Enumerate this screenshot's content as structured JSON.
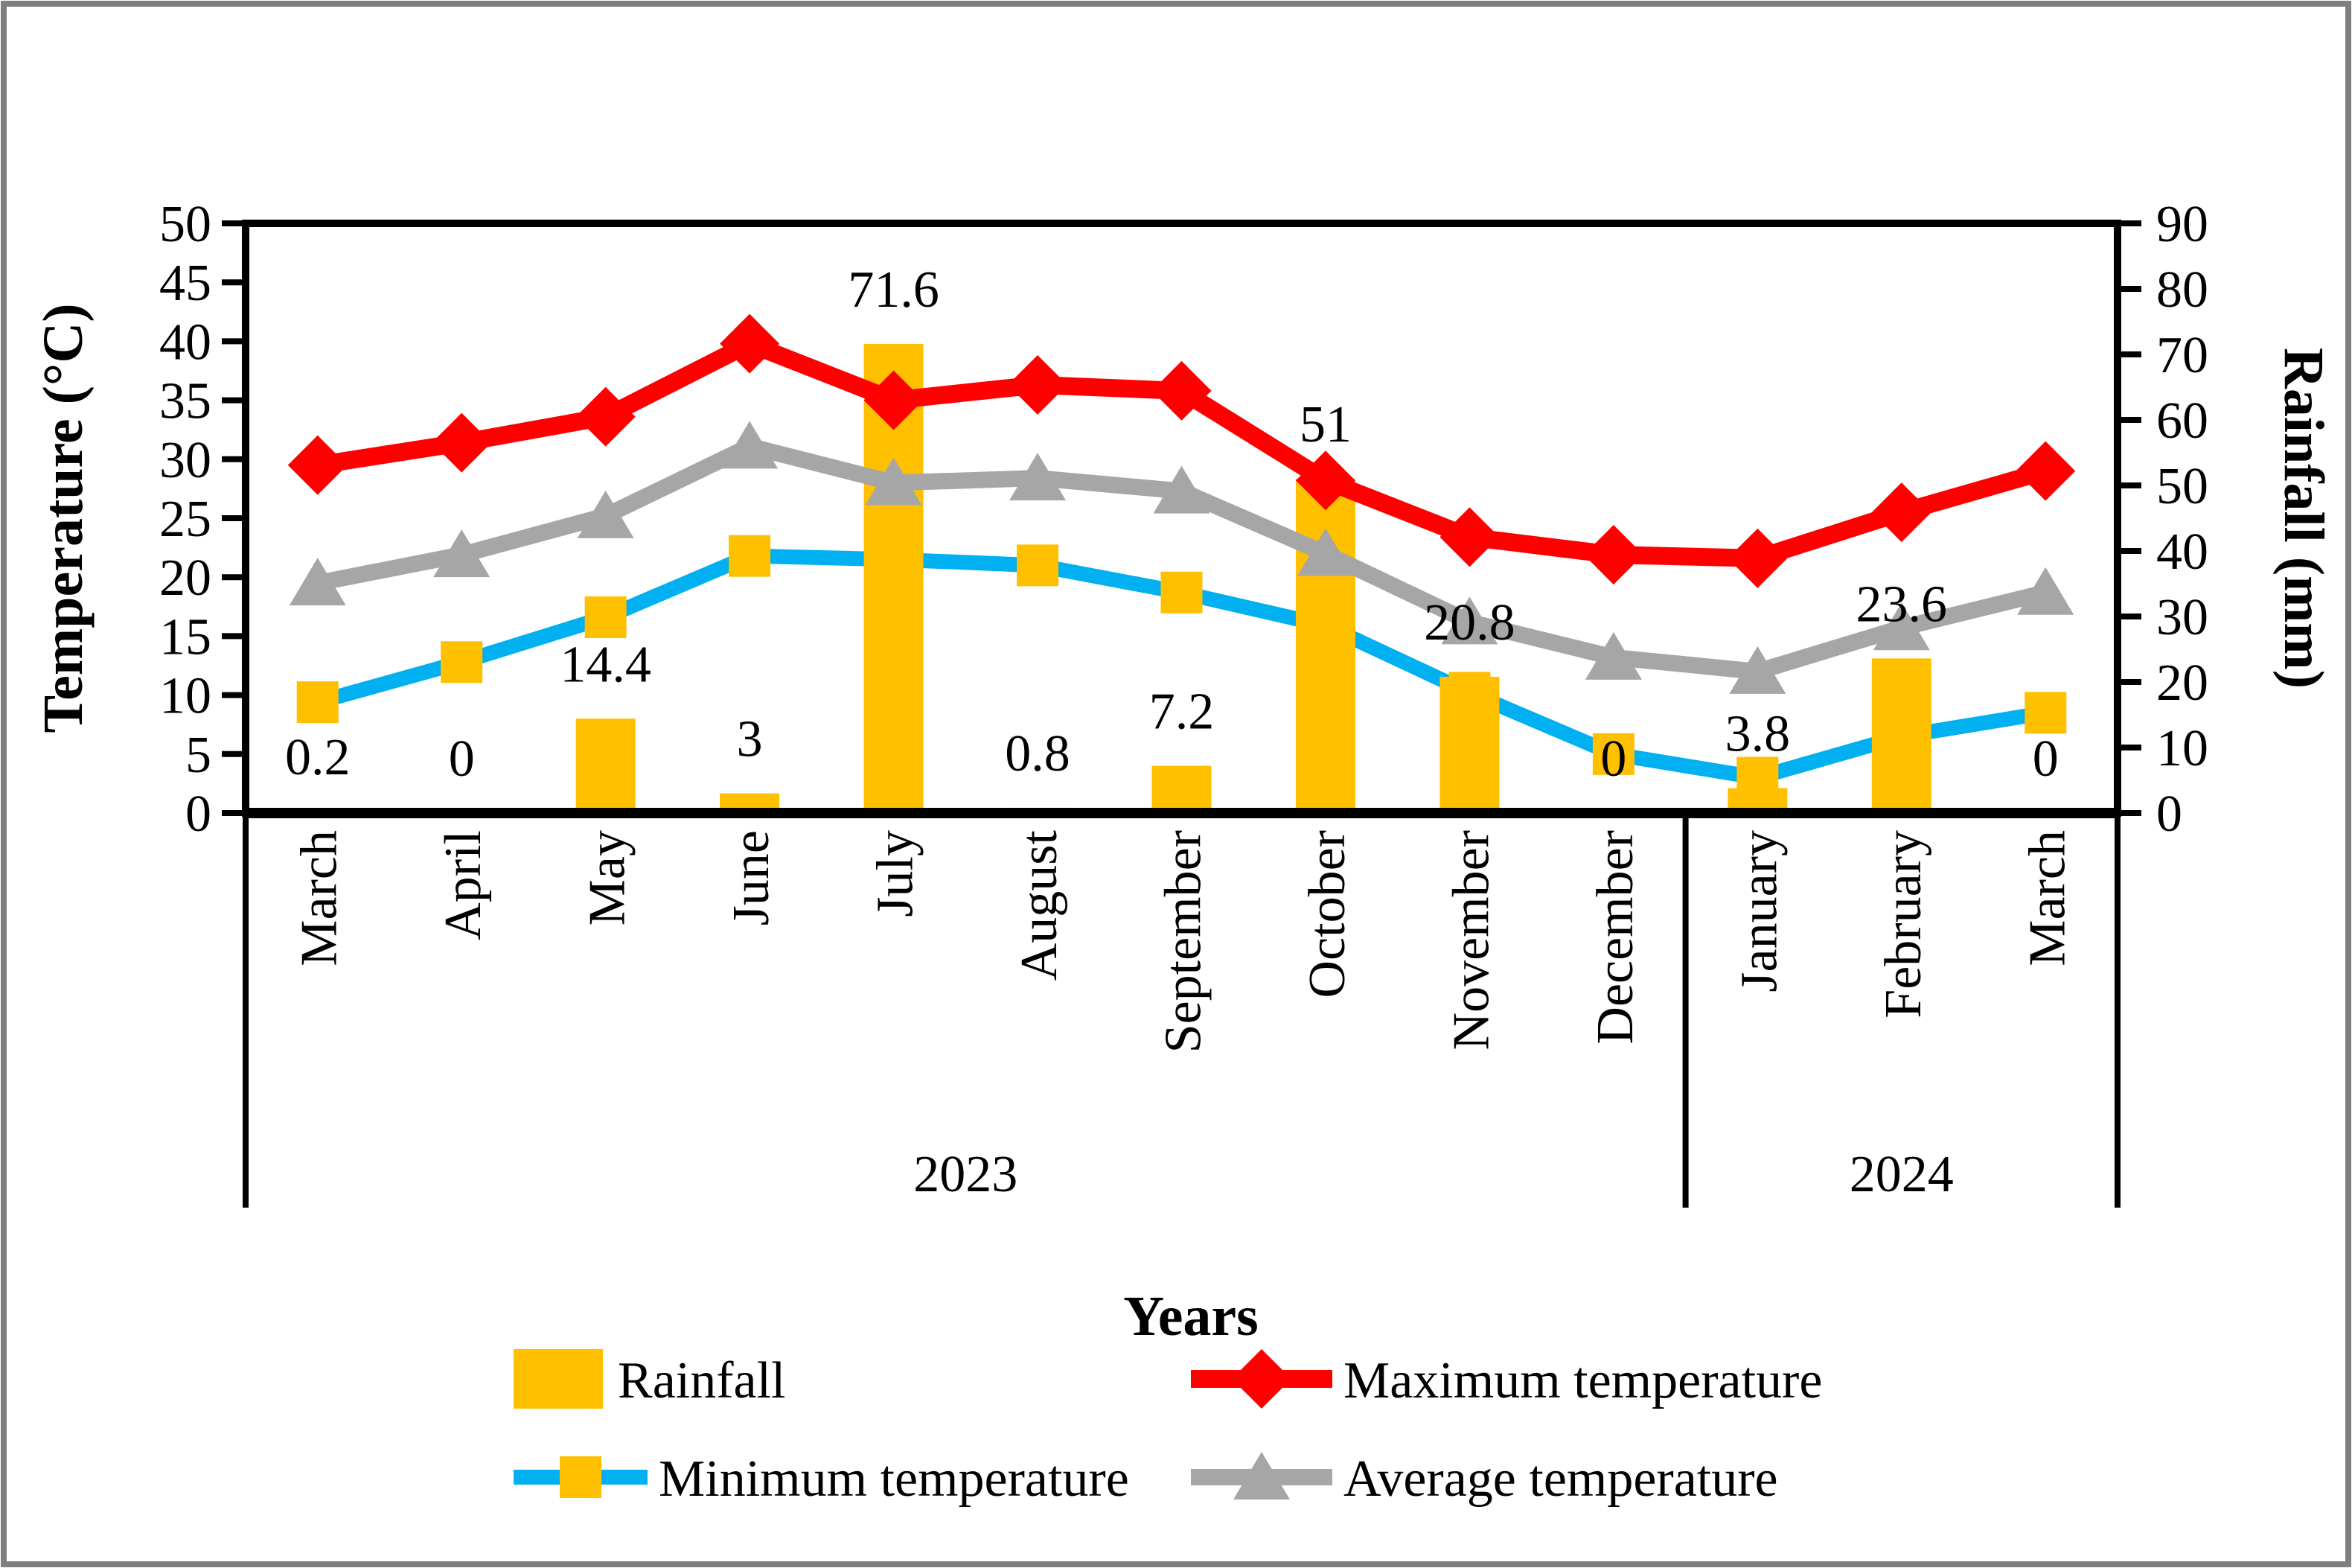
{
  "chart_data": {
    "type": "combo-bar-line",
    "categories": [
      "March",
      "April",
      "May",
      "June",
      "July",
      "August",
      "September",
      "October",
      "November",
      "December",
      "January",
      "February",
      "March"
    ],
    "year_groups": [
      {
        "label": "2023",
        "months": 10
      },
      {
        "label": "2024",
        "months": 3
      }
    ],
    "xlabel": "Years",
    "ylabel_left": "Temperature (°C)",
    "ylabel_right": "Rainfall (mm)",
    "y_left": {
      "min": 0,
      "max": 50,
      "step": 5
    },
    "y_right": {
      "min": 0,
      "max": 90,
      "step": 10
    },
    "grid": "off",
    "legend_position": "bottom",
    "series": [
      {
        "name": "Rainfall",
        "type": "bar",
        "axis": "right",
        "color": "#FFC000",
        "values": [
          0.2,
          0,
          14.4,
          3,
          71.6,
          0.8,
          7.2,
          51,
          20.8,
          0,
          3.8,
          23.6,
          0
        ],
        "labels": [
          "0.2",
          "0",
          "14.4",
          "3",
          "71.6",
          "0.8",
          "7.2",
          "51",
          "20.8",
          "0",
          "3.8",
          "23.6",
          "0"
        ]
      },
      {
        "name": "Maximum temperature",
        "type": "line",
        "axis": "left",
        "marker": "diamond",
        "color": "#FF0000",
        "marker_color": "#FF0000",
        "values": [
          29.5,
          31.4,
          33.6,
          39.8,
          35.0,
          36.3,
          35.8,
          28.2,
          23.4,
          21.9,
          21.6,
          25.5,
          29.0
        ]
      },
      {
        "name": "Minimum temperature",
        "type": "line",
        "axis": "left",
        "marker": "square",
        "color": "#00B0F0",
        "marker_color": "#FFC000",
        "values": [
          9.4,
          12.8,
          16.6,
          21.8,
          21.5,
          21.0,
          18.7,
          15.9,
          10.2,
          5.0,
          3.0,
          6.5,
          8.5
        ]
      },
      {
        "name": "Average temperature",
        "type": "line",
        "axis": "left",
        "marker": "triangle",
        "color": "#A6A6A6",
        "marker_color": "#A6A6A6",
        "values": [
          19.5,
          21.9,
          25.2,
          31.1,
          28.0,
          28.4,
          27.3,
          22.0,
          16.2,
          13.2,
          12.0,
          15.7,
          18.7
        ]
      }
    ]
  },
  "colors": {
    "axis": "#000000",
    "page_border": "#7F7F7F",
    "background": "#FFFFFF"
  }
}
